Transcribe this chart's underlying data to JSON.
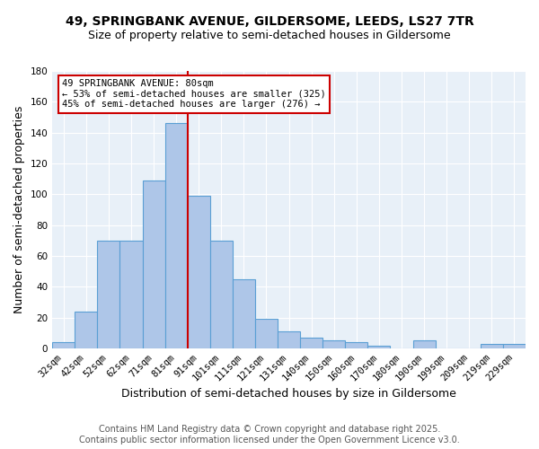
{
  "title": "49, SPRINGBANK AVENUE, GILDERSOME, LEEDS, LS27 7TR",
  "subtitle": "Size of property relative to semi-detached houses in Gildersome",
  "xlabel": "Distribution of semi-detached houses by size in Gildersome",
  "ylabel": "Number of semi-detached properties",
  "categories": [
    "32sqm",
    "42sqm",
    "52sqm",
    "62sqm",
    "71sqm",
    "81sqm",
    "91sqm",
    "101sqm",
    "111sqm",
    "121sqm",
    "131sqm",
    "140sqm",
    "150sqm",
    "160sqm",
    "170sqm",
    "180sqm",
    "190sqm",
    "199sqm",
    "209sqm",
    "219sqm",
    "229sqm"
  ],
  "values": [
    4,
    24,
    70,
    70,
    109,
    146,
    99,
    70,
    45,
    19,
    11,
    7,
    5,
    4,
    2,
    0,
    5,
    0,
    0,
    3,
    3
  ],
  "bar_color": "#aec6e8",
  "bar_edge_color": "#5a9fd4",
  "vline_index": 5,
  "annotation_line1": "49 SPRINGBANK AVENUE: 80sqm",
  "annotation_line2": "← 53% of semi-detached houses are smaller (325)",
  "annotation_line3": "45% of semi-detached houses are larger (276) →",
  "annotation_box_color": "#ffffff",
  "annotation_box_edge_color": "#cc0000",
  "vline_color": "#cc0000",
  "ylim": [
    0,
    180
  ],
  "yticks": [
    0,
    20,
    40,
    60,
    80,
    100,
    120,
    140,
    160,
    180
  ],
  "footer_line1": "Contains HM Land Registry data © Crown copyright and database right 2025.",
  "footer_line2": "Contains public sector information licensed under the Open Government Licence v3.0.",
  "bg_color": "#e8f0f8",
  "fig_bg_color": "#ffffff",
  "title_fontsize": 10,
  "subtitle_fontsize": 9,
  "axis_label_fontsize": 9,
  "tick_fontsize": 7.5,
  "annotation_fontsize": 7.5,
  "footer_fontsize": 7
}
